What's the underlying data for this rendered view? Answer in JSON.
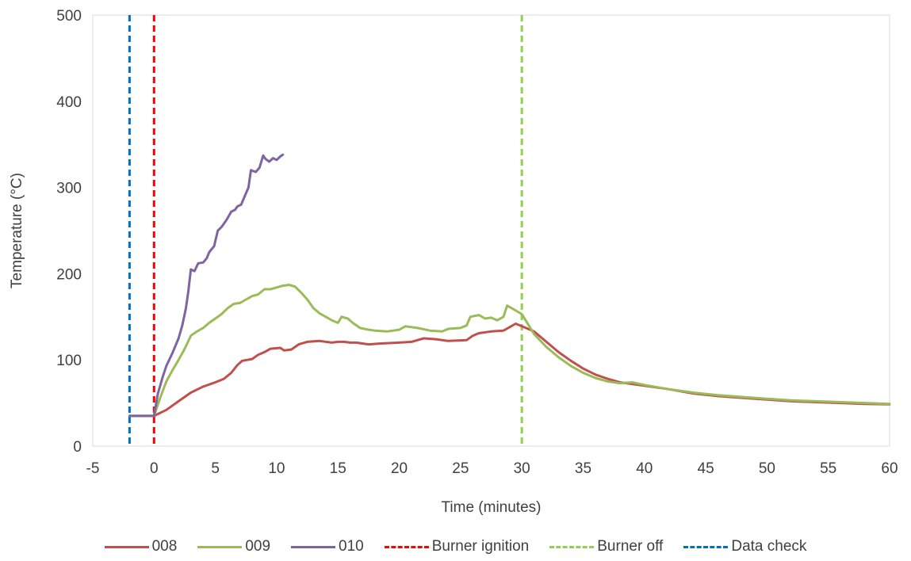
{
  "chart_data": {
    "type": "line",
    "xlabel": "Time (minutes)",
    "ylabel": "Temperature (°C)",
    "xlim": [
      -5,
      60
    ],
    "ylim": [
      0,
      500
    ],
    "xticks": [
      -5,
      0,
      5,
      10,
      15,
      20,
      25,
      30,
      35,
      40,
      45,
      50,
      55,
      60
    ],
    "yticks": [
      0,
      100,
      200,
      300,
      400,
      500
    ],
    "grid": false,
    "legend_position": "bottom",
    "series": [
      {
        "name": "008",
        "color": "#C0504D",
        "points": [
          [
            -2,
            35
          ],
          [
            0,
            35
          ],
          [
            1,
            42
          ],
          [
            2,
            52
          ],
          [
            3,
            62
          ],
          [
            4,
            69
          ],
          [
            5,
            74
          ],
          [
            5.7,
            78
          ],
          [
            6.3,
            85
          ],
          [
            6.8,
            94
          ],
          [
            7.2,
            99
          ],
          [
            8,
            101
          ],
          [
            8.5,
            106
          ],
          [
            9,
            109
          ],
          [
            9.5,
            113
          ],
          [
            10.3,
            114
          ],
          [
            10.6,
            111
          ],
          [
            11.2,
            112
          ],
          [
            11.8,
            118
          ],
          [
            12.5,
            121
          ],
          [
            13.5,
            122
          ],
          [
            14.5,
            120
          ],
          [
            15,
            121
          ],
          [
            15.5,
            121
          ],
          [
            16,
            120
          ],
          [
            16.5,
            120
          ],
          [
            17.5,
            118
          ],
          [
            18.5,
            119
          ],
          [
            20,
            120
          ],
          [
            21,
            121
          ],
          [
            22,
            125
          ],
          [
            23,
            124
          ],
          [
            24,
            122
          ],
          [
            25.5,
            123
          ],
          [
            26,
            128
          ],
          [
            26.5,
            131
          ],
          [
            27.5,
            133
          ],
          [
            28.5,
            134
          ],
          [
            29,
            138
          ],
          [
            29.5,
            142
          ],
          [
            30,
            139
          ],
          [
            31,
            133
          ],
          [
            32,
            121
          ],
          [
            33,
            109
          ],
          [
            34,
            99
          ],
          [
            35,
            90
          ],
          [
            36,
            83
          ],
          [
            37,
            78
          ],
          [
            38,
            74
          ],
          [
            40,
            70
          ],
          [
            42,
            66
          ],
          [
            44,
            61
          ],
          [
            46,
            58
          ],
          [
            48,
            56
          ],
          [
            50,
            54
          ],
          [
            52,
            52
          ],
          [
            54,
            51
          ],
          [
            56,
            50
          ],
          [
            58,
            49
          ],
          [
            60,
            48.5
          ]
        ]
      },
      {
        "name": "009",
        "color": "#9BBB59",
        "points": [
          [
            -2,
            35
          ],
          [
            0,
            35
          ],
          [
            0.5,
            56
          ],
          [
            1,
            75
          ],
          [
            1.5,
            88
          ],
          [
            2,
            100
          ],
          [
            2.5,
            113
          ],
          [
            3,
            128
          ],
          [
            3.5,
            133
          ],
          [
            4,
            137
          ],
          [
            4.5,
            143
          ],
          [
            5,
            148
          ],
          [
            5.5,
            153
          ],
          [
            6,
            160
          ],
          [
            6.5,
            165
          ],
          [
            7,
            166
          ],
          [
            7.5,
            170
          ],
          [
            8,
            174
          ],
          [
            8.5,
            176
          ],
          [
            9,
            182
          ],
          [
            9.5,
            182
          ],
          [
            10,
            184
          ],
          [
            10.5,
            186
          ],
          [
            11,
            187
          ],
          [
            11.5,
            185
          ],
          [
            12,
            178
          ],
          [
            12.5,
            170
          ],
          [
            13,
            160
          ],
          [
            13.5,
            154
          ],
          [
            14,
            150
          ],
          [
            14.5,
            146
          ],
          [
            15,
            143
          ],
          [
            15.3,
            150
          ],
          [
            15.8,
            148
          ],
          [
            16.2,
            143
          ],
          [
            16.8,
            137
          ],
          [
            17.5,
            135
          ],
          [
            18,
            134
          ],
          [
            19,
            133
          ],
          [
            20,
            135
          ],
          [
            20.5,
            139
          ],
          [
            21.5,
            137
          ],
          [
            22.5,
            134
          ],
          [
            23.5,
            133
          ],
          [
            24,
            136
          ],
          [
            25,
            137
          ],
          [
            25.5,
            140
          ],
          [
            25.8,
            150
          ],
          [
            26.5,
            152
          ],
          [
            27,
            148
          ],
          [
            27.5,
            149
          ],
          [
            28,
            146
          ],
          [
            28.5,
            150
          ],
          [
            28.8,
            163
          ],
          [
            29.3,
            159
          ],
          [
            30,
            153
          ],
          [
            31,
            130
          ],
          [
            32,
            115
          ],
          [
            33,
            103
          ],
          [
            34,
            93
          ],
          [
            35,
            85
          ],
          [
            36,
            79
          ],
          [
            37,
            75
          ],
          [
            38,
            73
          ],
          [
            39,
            74
          ],
          [
            40,
            71
          ],
          [
            42,
            66
          ],
          [
            44,
            62
          ],
          [
            46,
            59
          ],
          [
            48,
            57
          ],
          [
            50,
            55
          ],
          [
            52,
            53
          ],
          [
            54,
            52
          ],
          [
            56,
            51
          ],
          [
            58,
            50
          ],
          [
            60,
            49
          ]
        ]
      },
      {
        "name": "010",
        "color": "#8064A2",
        "points": [
          [
            -2,
            35
          ],
          [
            0,
            35
          ],
          [
            0.3,
            60
          ],
          [
            0.7,
            80
          ],
          [
            1,
            93
          ],
          [
            1.5,
            108
          ],
          [
            2,
            125
          ],
          [
            2.3,
            140
          ],
          [
            2.6,
            160
          ],
          [
            2.8,
            180
          ],
          [
            3,
            205
          ],
          [
            3.3,
            203
          ],
          [
            3.6,
            212
          ],
          [
            4,
            213
          ],
          [
            4.3,
            218
          ],
          [
            4.5,
            225
          ],
          [
            4.9,
            232
          ],
          [
            5.2,
            250
          ],
          [
            5.5,
            254
          ],
          [
            5.9,
            262
          ],
          [
            6.3,
            272
          ],
          [
            6.6,
            274
          ],
          [
            6.8,
            278
          ],
          [
            7.1,
            280
          ],
          [
            7.4,
            290
          ],
          [
            7.7,
            300
          ],
          [
            7.9,
            320
          ],
          [
            8.3,
            318
          ],
          [
            8.6,
            323
          ],
          [
            8.9,
            337
          ],
          [
            9.1,
            333
          ],
          [
            9.4,
            330
          ],
          [
            9.7,
            334
          ],
          [
            10,
            332
          ],
          [
            10.3,
            336
          ],
          [
            10.5,
            338
          ]
        ]
      }
    ],
    "vertical_lines": [
      {
        "name": "Burner ignition",
        "x": 0,
        "color": "#FF0000"
      },
      {
        "name": "Burner off",
        "x": 30,
        "color": "#92D050"
      },
      {
        "name": "Data check",
        "x": -2,
        "color": "#0070C0"
      }
    ]
  }
}
